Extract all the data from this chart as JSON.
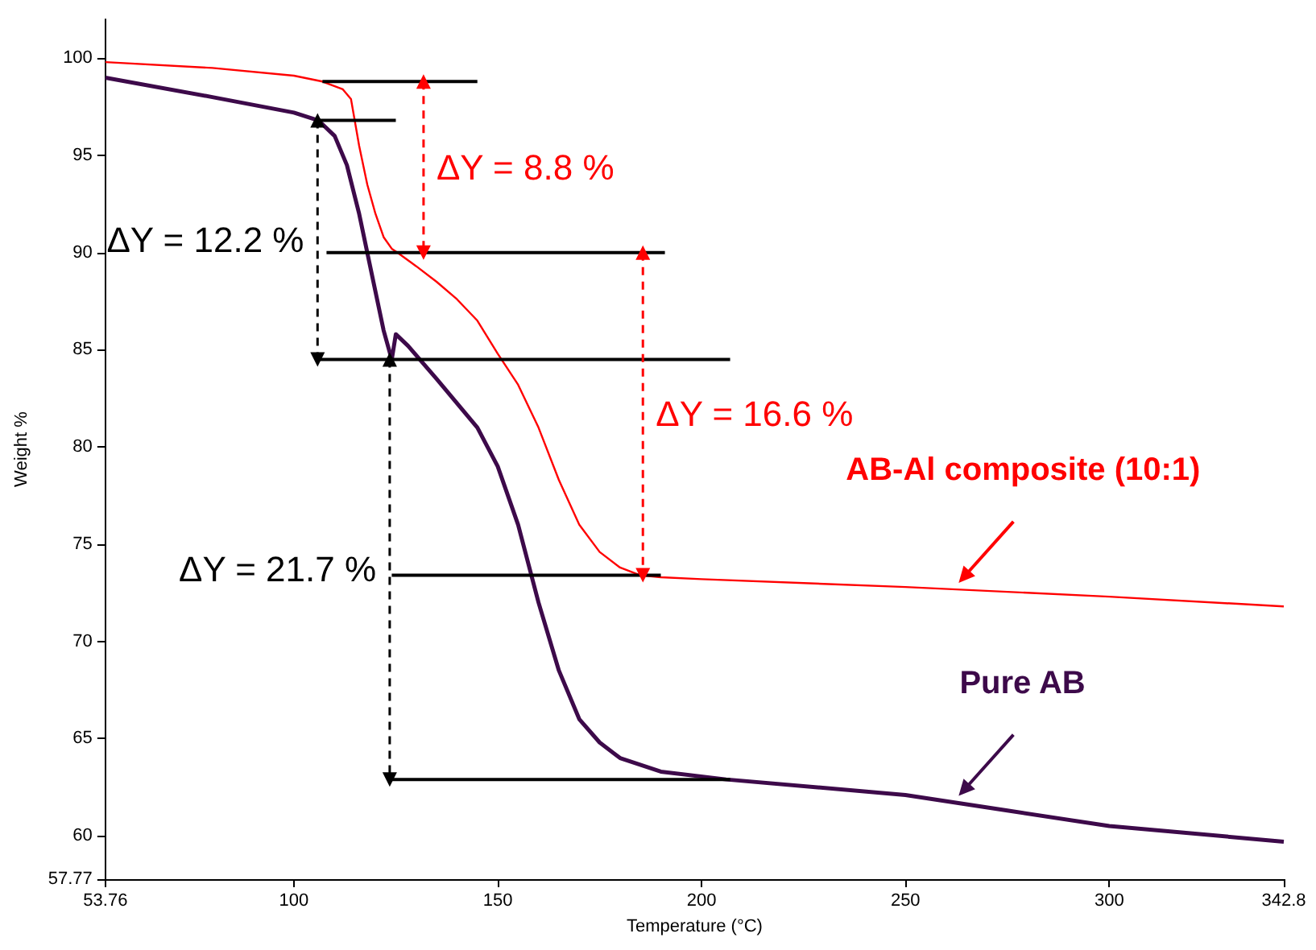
{
  "chart_data": {
    "type": "line",
    "xlabel": "Temperature (°C)",
    "ylabel": "Weight %",
    "xlim": [
      53.76,
      342.8
    ],
    "xticks": [
      53.76,
      100,
      150,
      200,
      250,
      300,
      342.8
    ],
    "ylim": [
      57.77,
      102
    ],
    "yticks": [
      57.77,
      60,
      65,
      70,
      75,
      80,
      85,
      90,
      95,
      100
    ],
    "line_style": "solid",
    "grid": false,
    "legend": false,
    "marker": "none",
    "annotations": [
      "ΔY = 8.8 %",
      "ΔY = 12.2 %",
      "ΔY = 16.6 %",
      "ΔY = 21.7 %"
    ],
    "series": [
      {
        "name": "AB-Al composite (10:1)",
        "color": "#ff0000",
        "x": [
          53.76,
          80,
          100,
          107,
          112,
          114,
          116,
          118,
          120,
          122,
          124,
          125.4,
          130,
          135,
          140,
          145,
          150,
          155,
          160,
          165,
          170,
          175,
          180,
          185,
          190,
          200,
          250,
          300,
          342.8
        ],
        "values": [
          99.8,
          99.5,
          99.1,
          98.8,
          98.4,
          97.9,
          95.5,
          93.5,
          92,
          90.8,
          90.2,
          90,
          89.3,
          88.5,
          87.6,
          86.5,
          84.8,
          83.2,
          81,
          78.3,
          76,
          74.6,
          73.8,
          73.4,
          73.3,
          73.2,
          72.8,
          72.3,
          71.8
        ]
      },
      {
        "name": "Pure AB",
        "color": "#3d0a4a",
        "x": [
          53.76,
          80,
          100,
          106,
          110,
          113,
          116,
          119,
          122,
          124,
          125,
          128,
          135,
          145,
          150,
          155,
          160,
          165,
          170,
          175,
          180,
          190,
          206,
          250,
          275,
          300,
          342.8
        ],
        "values": [
          99.0,
          98.0,
          97.2,
          96.8,
          96,
          94.5,
          92,
          89,
          86,
          84.5,
          85.8,
          85.2,
          83.5,
          81,
          79,
          76,
          72,
          68.5,
          66,
          64.8,
          64,
          63.3,
          62.9,
          62.1,
          61.3,
          60.5,
          59.7
        ]
      },
      {
        "color": "#000000",
        "x": [
          107,
          145
        ],
        "values": [
          98.8,
          98.8
        ]
      },
      {
        "color": "#000000",
        "x": [
          106,
          125
        ],
        "values": [
          96.8,
          96.8
        ]
      },
      {
        "color": "#000000",
        "x": [
          108,
          191
        ],
        "values": [
          90.0,
          90.0
        ]
      },
      {
        "color": "#000000",
        "x": [
          106,
          207
        ],
        "values": [
          84.5,
          84.5
        ]
      },
      {
        "color": "#000000",
        "x": [
          124,
          190
        ],
        "values": [
          73.4,
          73.4
        ]
      },
      {
        "color": "#000000",
        "x": [
          124,
          207
        ],
        "values": [
          62.9,
          62.9
        ]
      },
      {
        "color": "#ff0000",
        "x": [
          131.8,
          131.8
        ],
        "values": [
          98.8,
          90.0
        ],
        "line_style": "dashed",
        "marker": "triangle"
      },
      {
        "color": "#000000",
        "x": [
          105.8,
          105.8
        ],
        "values": [
          96.8,
          84.5
        ],
        "line_style": "dashed",
        "marker": "triangle"
      },
      {
        "color": "#ff0000",
        "x": [
          185.6,
          185.6
        ],
        "values": [
          90.0,
          73.4
        ],
        "line_style": "dashed",
        "marker": "triangle"
      },
      {
        "color": "#000000",
        "x": [
          123.5,
          123.5
        ],
        "values": [
          84.5,
          62.9
        ],
        "line_style": "dashed",
        "marker": "triangle"
      }
    ]
  }
}
